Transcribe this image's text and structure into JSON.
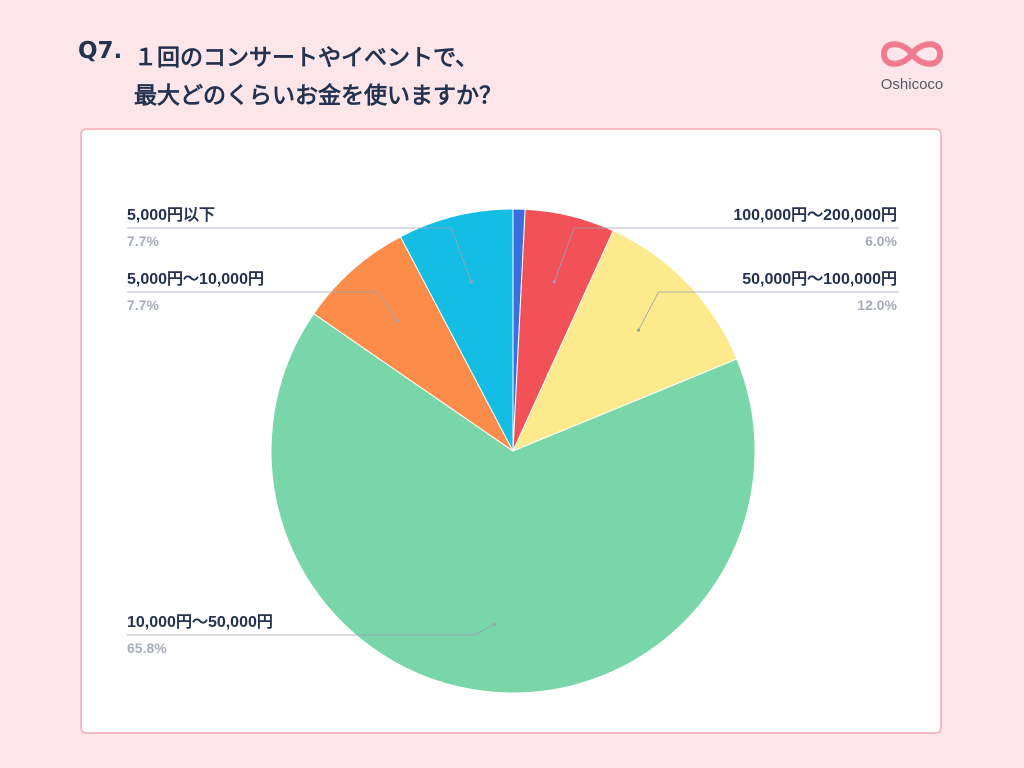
{
  "header": {
    "question_number": "Q7.",
    "question_line1": "１回のコンサートやイベントで、",
    "question_line2": "最大どのくらいお金を使いますか？"
  },
  "logo": {
    "name": "Oshicoco",
    "icon": "infinity-heart-icon",
    "color": "#f07b8e"
  },
  "chart_data": {
    "type": "pie",
    "title": "",
    "start": "12 o'clock",
    "direction": "clockwise",
    "slices": [
      {
        "label": "",
        "value": 0.8,
        "color": "#3b6fe0"
      },
      {
        "label": "100,000円〜200,000円",
        "value": 6.0,
        "display": "6.0%",
        "color": "#f25157"
      },
      {
        "label": "50,000円〜100,000円",
        "value": 12.0,
        "display": "12.0%",
        "color": "#fdea8c"
      },
      {
        "label": "10,000円〜50,000円",
        "value": 65.8,
        "display": "65.8%",
        "color": "#78d6a8"
      },
      {
        "label": "5,000円〜10,000円",
        "value": 7.7,
        "display": "7.7%",
        "color": "#fb8c4a"
      },
      {
        "label": "5,000円以下",
        "value": 7.7,
        "display": "7.7%",
        "color": "#14bde3"
      }
    ]
  }
}
